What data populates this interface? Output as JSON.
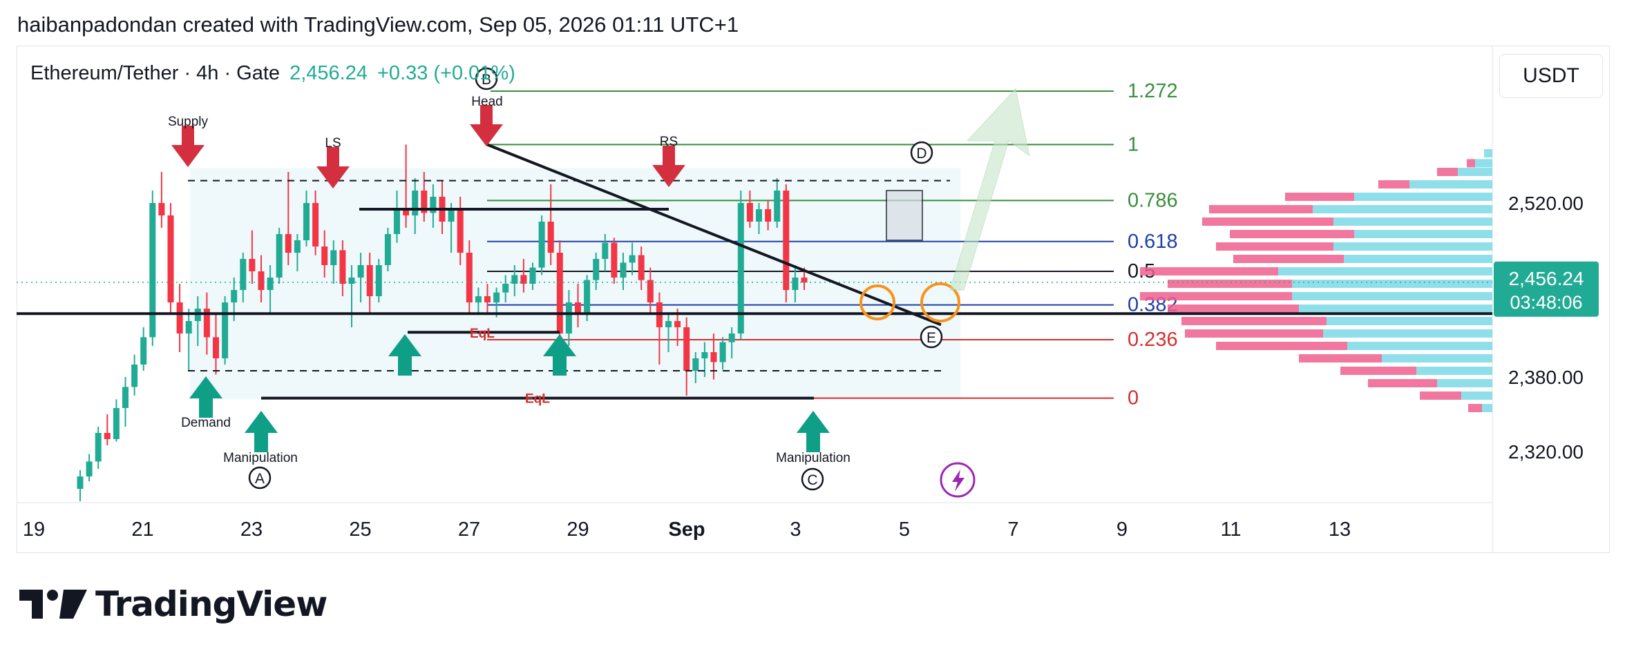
{
  "header": {
    "title": "haibanpadondan created with TradingView.com, Sep 05, 2026 01:11 UTC+1"
  },
  "legend": {
    "symbol": "Ethereum/Tether · 4h · Gate",
    "price": "2,456.24",
    "change": "+0.33 (+0.01%)"
  },
  "currency_label": "USDT",
  "brand": "TradingView",
  "colors": {
    "up": "#22ab94",
    "down": "#f23645",
    "fib_green": "#388e3c",
    "fib_blue": "#1e3fa8",
    "fib_red": "#d32f2f",
    "accent": "#22ab94"
  },
  "chart_data": {
    "type": "candlestick",
    "symbol": "Ethereum/Tether",
    "interval": "4h",
    "exchange": "Gate",
    "last_price": 2456.24,
    "countdown": "03:48:06",
    "last_price_label": "2,456.24",
    "ylim": [
      2290,
      2620
    ],
    "y_ticks": [
      {
        "value": 2520,
        "label": "2,520.00"
      },
      {
        "value": 2380,
        "label": "2,380.00"
      },
      {
        "value": 2320,
        "label": "2,320.00"
      }
    ],
    "x_ticks": [
      "19",
      "21",
      "23",
      "25",
      "27",
      "29",
      "Sep",
      "3",
      "5",
      "7",
      "9",
      "11",
      "13"
    ],
    "fib_levels": [
      {
        "level": "1.272",
        "price": 2610,
        "color": "#388e3c"
      },
      {
        "level": "1",
        "price": 2567,
        "color": "#388e3c"
      },
      {
        "level": "0.786",
        "price": 2522,
        "color": "#388e3c"
      },
      {
        "level": "0.618",
        "price": 2489,
        "color": "#1e3fa8"
      },
      {
        "level": "0.5",
        "price": 2465,
        "color": "#131722"
      },
      {
        "level": "0.382",
        "price": 2438,
        "color": "#1e3fa8"
      },
      {
        "level": "0.236",
        "price": 2410,
        "color": "#d32f2f"
      },
      {
        "level": "0",
        "price": 2363,
        "color": "#d32f2f"
      }
    ],
    "annotations": {
      "supply": "Supply",
      "demand": "Demand",
      "ls": "LS",
      "head": "Head",
      "rs": "RS",
      "manipulation_1": "Manipulation",
      "manipulation_2": "Manipulation",
      "eql_1": "EqL",
      "eql_2": "EqL",
      "point_a": "A",
      "point_b": "B",
      "point_c": "C",
      "point_d": "D",
      "point_e": "E"
    },
    "candles": [
      [
        2290,
        2305,
        2280,
        2300
      ],
      [
        2300,
        2318,
        2296,
        2312
      ],
      [
        2312,
        2340,
        2306,
        2335
      ],
      [
        2335,
        2350,
        2325,
        2330
      ],
      [
        2330,
        2362,
        2328,
        2355
      ],
      [
        2355,
        2380,
        2340,
        2372
      ],
      [
        2372,
        2398,
        2365,
        2390
      ],
      [
        2390,
        2420,
        2385,
        2412
      ],
      [
        2412,
        2530,
        2405,
        2520
      ],
      [
        2520,
        2545,
        2500,
        2510
      ],
      [
        2510,
        2520,
        2430,
        2440
      ],
      [
        2440,
        2455,
        2400,
        2415
      ],
      [
        2415,
        2435,
        2385,
        2425
      ],
      [
        2425,
        2445,
        2405,
        2435
      ],
      [
        2435,
        2448,
        2398,
        2412
      ],
      [
        2412,
        2430,
        2382,
        2395
      ],
      [
        2395,
        2445,
        2390,
        2440
      ],
      [
        2440,
        2460,
        2425,
        2450
      ],
      [
        2450,
        2480,
        2440,
        2475
      ],
      [
        2475,
        2498,
        2455,
        2465
      ],
      [
        2465,
        2478,
        2440,
        2450
      ],
      [
        2450,
        2470,
        2430,
        2460
      ],
      [
        2460,
        2500,
        2455,
        2495
      ],
      [
        2495,
        2545,
        2470,
        2480
      ],
      [
        2480,
        2495,
        2465,
        2490
      ],
      [
        2490,
        2530,
        2485,
        2520
      ],
      [
        2520,
        2530,
        2478,
        2485
      ],
      [
        2485,
        2498,
        2460,
        2470
      ],
      [
        2470,
        2490,
        2455,
        2482
      ],
      [
        2482,
        2490,
        2445,
        2455
      ],
      [
        2455,
        2470,
        2420,
        2460
      ],
      [
        2460,
        2480,
        2440,
        2470
      ],
      [
        2470,
        2480,
        2430,
        2445
      ],
      [
        2445,
        2475,
        2440,
        2470
      ],
      [
        2470,
        2500,
        2465,
        2495
      ],
      [
        2495,
        2530,
        2488,
        2515
      ],
      [
        2515,
        2567,
        2500,
        2510
      ],
      [
        2510,
        2540,
        2495,
        2530
      ],
      [
        2530,
        2545,
        2505,
        2512
      ],
      [
        2512,
        2535,
        2500,
        2525
      ],
      [
        2525,
        2538,
        2495,
        2505
      ],
      [
        2505,
        2520,
        2480,
        2515
      ],
      [
        2515,
        2525,
        2470,
        2480
      ],
      [
        2480,
        2490,
        2430,
        2440
      ],
      [
        2440,
        2452,
        2430,
        2445
      ],
      [
        2445,
        2455,
        2432,
        2440
      ],
      [
        2440,
        2452,
        2428,
        2448
      ],
      [
        2448,
        2462,
        2440,
        2455
      ],
      [
        2455,
        2470,
        2445,
        2462
      ],
      [
        2462,
        2475,
        2448,
        2455
      ],
      [
        2455,
        2472,
        2450,
        2468
      ],
      [
        2468,
        2510,
        2462,
        2505
      ],
      [
        2505,
        2535,
        2470,
        2480
      ],
      [
        2480,
        2490,
        2395,
        2415
      ],
      [
        2415,
        2450,
        2405,
        2440
      ],
      [
        2440,
        2455,
        2420,
        2430
      ],
      [
        2430,
        2462,
        2425,
        2458
      ],
      [
        2458,
        2480,
        2450,
        2475
      ],
      [
        2475,
        2495,
        2465,
        2488
      ],
      [
        2488,
        2492,
        2455,
        2460
      ],
      [
        2460,
        2480,
        2450,
        2472
      ],
      [
        2472,
        2488,
        2462,
        2478
      ],
      [
        2478,
        2485,
        2450,
        2458
      ],
      [
        2458,
        2468,
        2430,
        2440
      ],
      [
        2440,
        2448,
        2390,
        2420
      ],
      [
        2420,
        2432,
        2400,
        2425
      ],
      [
        2425,
        2435,
        2405,
        2420
      ],
      [
        2420,
        2428,
        2365,
        2385
      ],
      [
        2385,
        2400,
        2375,
        2395
      ],
      [
        2395,
        2408,
        2380,
        2400
      ],
      [
        2400,
        2415,
        2378,
        2392
      ],
      [
        2392,
        2412,
        2386,
        2408
      ],
      [
        2408,
        2420,
        2395,
        2415
      ],
      [
        2415,
        2530,
        2410,
        2520
      ],
      [
        2520,
        2530,
        2500,
        2505
      ],
      [
        2505,
        2520,
        2495,
        2515
      ],
      [
        2515,
        2522,
        2498,
        2505
      ],
      [
        2505,
        2540,
        2500,
        2530
      ],
      [
        2530,
        2535,
        2440,
        2450
      ],
      [
        2450,
        2470,
        2440,
        2460
      ],
      [
        2460,
        2468,
        2450,
        2456
      ]
    ]
  }
}
